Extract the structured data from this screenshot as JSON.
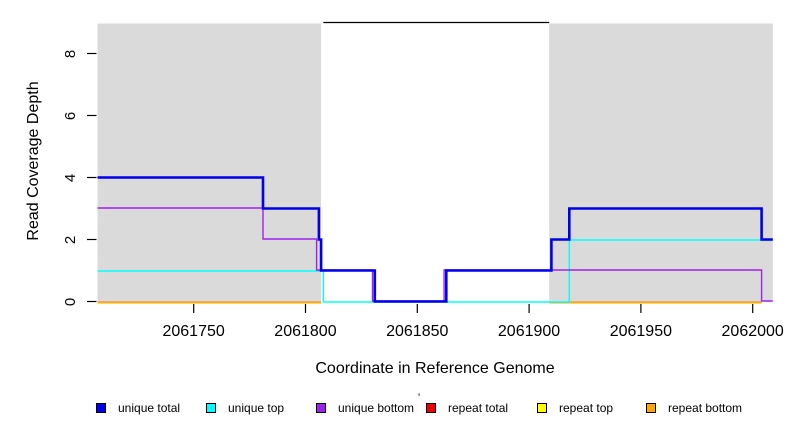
{
  "chart_data": {
    "type": "line",
    "title": "",
    "xlabel": "Coordinate in Reference Genome",
    "ylabel": "Read Coverage Depth",
    "x_range": [
      2061707,
      2062009
    ],
    "ylim": [
      0,
      9
    ],
    "grid": false,
    "legend_position": "bottom",
    "x_axis": {
      "ticks": [
        2061750,
        2061800,
        2061850,
        2061900,
        2061950,
        2062000
      ],
      "labels": [
        "2061750",
        "2061800",
        "2061850",
        "2061900",
        "2061950",
        "2062000"
      ]
    },
    "y_axis": {
      "ticks": [
        0,
        2,
        4,
        6,
        8
      ],
      "labels": [
        "0",
        "2",
        "4",
        "6",
        "8"
      ]
    },
    "shaded_regions": {
      "color": "#dadada",
      "regions": [
        [
          2061707,
          2061807
        ],
        [
          2061909,
          2062009
        ]
      ]
    },
    "annotation_segment": {
      "y": 9,
      "from": 2061808,
      "to": 2061909,
      "color": "#000000"
    },
    "series": [
      {
        "name": "repeat total",
        "color": "#ee0000",
        "width": 1.4,
        "steps": [
          [
            2061707,
            2061807,
            0
          ],
          [
            2061909,
            2062004,
            0
          ]
        ]
      },
      {
        "name": "repeat top",
        "color": "#ffff00",
        "width": 1.4,
        "steps": [
          [
            2061707,
            2061807,
            0
          ],
          [
            2061909,
            2062004,
            0
          ]
        ]
      },
      {
        "name": "repeat bottom",
        "color": "#ffa500",
        "width": 1.4,
        "steps": [
          [
            2061707,
            2061807,
            0
          ],
          [
            2061909,
            2062004,
            0
          ]
        ]
      },
      {
        "name": "unique top",
        "color": "#00ffff",
        "width": 1.4,
        "steps": [
          [
            2061707,
            2061808,
            1
          ],
          [
            2061808,
            2061918,
            0
          ],
          [
            2061918,
            2062009,
            2
          ]
        ]
      },
      {
        "name": "unique bottom",
        "color": "#a020f0",
        "width": 1.4,
        "steps": [
          [
            2061707,
            2061781,
            3
          ],
          [
            2061781,
            2061805,
            2
          ],
          [
            2061805,
            2061830,
            1
          ],
          [
            2061830,
            2061862,
            0
          ],
          [
            2061862,
            2062004,
            1
          ],
          [
            2062004,
            2062009,
            0
          ]
        ]
      },
      {
        "name": "unique total",
        "color": "#0000ee",
        "width": 2.6,
        "steps": [
          [
            2061707,
            2061781,
            4
          ],
          [
            2061781,
            2061806,
            3
          ],
          [
            2061806,
            2061807,
            2
          ],
          [
            2061807,
            2061831,
            1
          ],
          [
            2061831,
            2061863,
            0
          ],
          [
            2061863,
            2061910,
            1
          ],
          [
            2061910,
            2061918,
            2
          ],
          [
            2061918,
            2062004,
            3
          ],
          [
            2062004,
            2062009,
            2
          ]
        ]
      }
    ],
    "legend": {
      "items": [
        {
          "label": "unique total",
          "color": "#0000ee"
        },
        {
          "label": "unique top",
          "color": "#00ffff"
        },
        {
          "label": "unique bottom",
          "color": "#a020f0"
        },
        {
          "label": "repeat total",
          "color": "#ee0000"
        },
        {
          "label": "repeat top",
          "color": "#ffff00"
        },
        {
          "label": "repeat bottom",
          "color": "#ffa500"
        }
      ],
      "artifact": "'"
    }
  }
}
